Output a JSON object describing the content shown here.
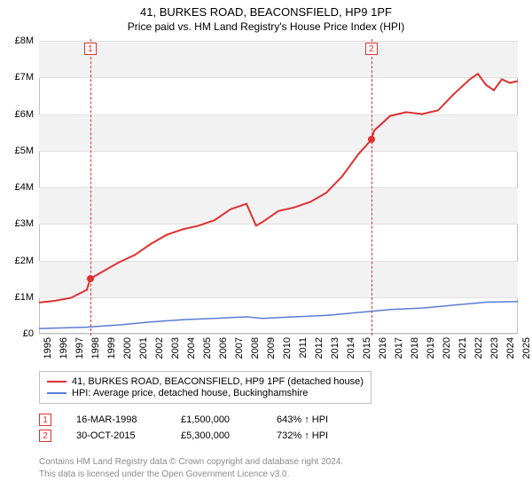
{
  "title": "41, BURKES ROAD, BEACONSFIELD, HP9 1PF",
  "subtitle": "Price paid vs. HM Land Registry's House Price Index (HPI)",
  "chart": {
    "type": "line",
    "background_color": "#ffffff",
    "band_color": "#f2f2f2",
    "grid_color": "#e0e0e0",
    "border_color": "#c0c0c0",
    "ylim": [
      0,
      8
    ],
    "ytick_step": 1,
    "yticks": [
      "£0",
      "£1M",
      "£2M",
      "£3M",
      "£4M",
      "£5M",
      "£6M",
      "£7M",
      "£8M"
    ],
    "y_fontsize": 11,
    "xlim": [
      1995,
      2025
    ],
    "xticks": [
      1995,
      1996,
      1997,
      1998,
      1999,
      2000,
      2001,
      2002,
      2003,
      2004,
      2005,
      2006,
      2007,
      2008,
      2009,
      2010,
      2011,
      2012,
      2013,
      2014,
      2015,
      2016,
      2017,
      2018,
      2019,
      2020,
      2021,
      2022,
      2023,
      2024,
      2025
    ],
    "x_fontsize": 11,
    "series": [
      {
        "name": "property",
        "color": "#e03030",
        "line_width": 2,
        "label": "41, BURKES ROAD, BEACONSFIELD, HP9 1PF (detached house)",
        "points": [
          [
            1995,
            0.85
          ],
          [
            1996,
            0.9
          ],
          [
            1997,
            0.98
          ],
          [
            1998,
            1.2
          ],
          [
            1998.21,
            1.5
          ],
          [
            1999,
            1.7
          ],
          [
            2000,
            1.95
          ],
          [
            2001,
            2.15
          ],
          [
            2002,
            2.45
          ],
          [
            2003,
            2.7
          ],
          [
            2004,
            2.85
          ],
          [
            2005,
            2.95
          ],
          [
            2006,
            3.1
          ],
          [
            2007,
            3.4
          ],
          [
            2008,
            3.55
          ],
          [
            2008.6,
            2.95
          ],
          [
            2009,
            3.05
          ],
          [
            2010,
            3.35
          ],
          [
            2011,
            3.45
          ],
          [
            2012,
            3.6
          ],
          [
            2013,
            3.85
          ],
          [
            2014,
            4.3
          ],
          [
            2015,
            4.9
          ],
          [
            2015.83,
            5.3
          ],
          [
            2016,
            5.55
          ],
          [
            2017,
            5.95
          ],
          [
            2018,
            6.05
          ],
          [
            2019,
            6.0
          ],
          [
            2020,
            6.1
          ],
          [
            2021,
            6.55
          ],
          [
            2022,
            6.95
          ],
          [
            2022.5,
            7.1
          ],
          [
            2023,
            6.8
          ],
          [
            2023.5,
            6.65
          ],
          [
            2024,
            6.95
          ],
          [
            2024.5,
            6.85
          ],
          [
            2025,
            6.9
          ]
        ]
      },
      {
        "name": "hpi",
        "color": "#5b7bd5",
        "line_width": 1.5,
        "label": "HPI: Average price, detached house, Buckinghamshire",
        "points": [
          [
            1995,
            0.14
          ],
          [
            1998,
            0.18
          ],
          [
            2000,
            0.24
          ],
          [
            2002,
            0.32
          ],
          [
            2004,
            0.38
          ],
          [
            2006,
            0.42
          ],
          [
            2008,
            0.46
          ],
          [
            2009,
            0.42
          ],
          [
            2011,
            0.46
          ],
          [
            2013,
            0.5
          ],
          [
            2015,
            0.58
          ],
          [
            2017,
            0.66
          ],
          [
            2019,
            0.7
          ],
          [
            2021,
            0.78
          ],
          [
            2023,
            0.86
          ],
          [
            2025,
            0.88
          ]
        ]
      }
    ],
    "markers": [
      {
        "label": "1",
        "x": 1998.21,
        "y": 1.5
      },
      {
        "label": "2",
        "x": 2015.83,
        "y": 5.3
      }
    ],
    "marker_color": "#e03030",
    "marker_dot_size": 8
  },
  "legend": {
    "border_color": "#c0c0c0",
    "fontsize": 11,
    "items": [
      {
        "color": "#e03030",
        "label": "41, BURKES ROAD, BEACONSFIELD, HP9 1PF (detached house)"
      },
      {
        "color": "#5b7bd5",
        "label": "HPI: Average price, detached house, Buckinghamshire"
      }
    ]
  },
  "transactions": [
    {
      "badge": "1",
      "date": "16-MAR-1998",
      "price": "£1,500,000",
      "pct": "643% ↑ HPI"
    },
    {
      "badge": "2",
      "date": "30-OCT-2015",
      "price": "£5,300,000",
      "pct": "732% ↑ HPI"
    }
  ],
  "footer": {
    "line1": "Contains HM Land Registry data © Crown copyright and database right 2024.",
    "line2": "This data is licensed under the Open Government Licence v3.0.",
    "color": "#8a8a8a",
    "fontsize": 10
  }
}
